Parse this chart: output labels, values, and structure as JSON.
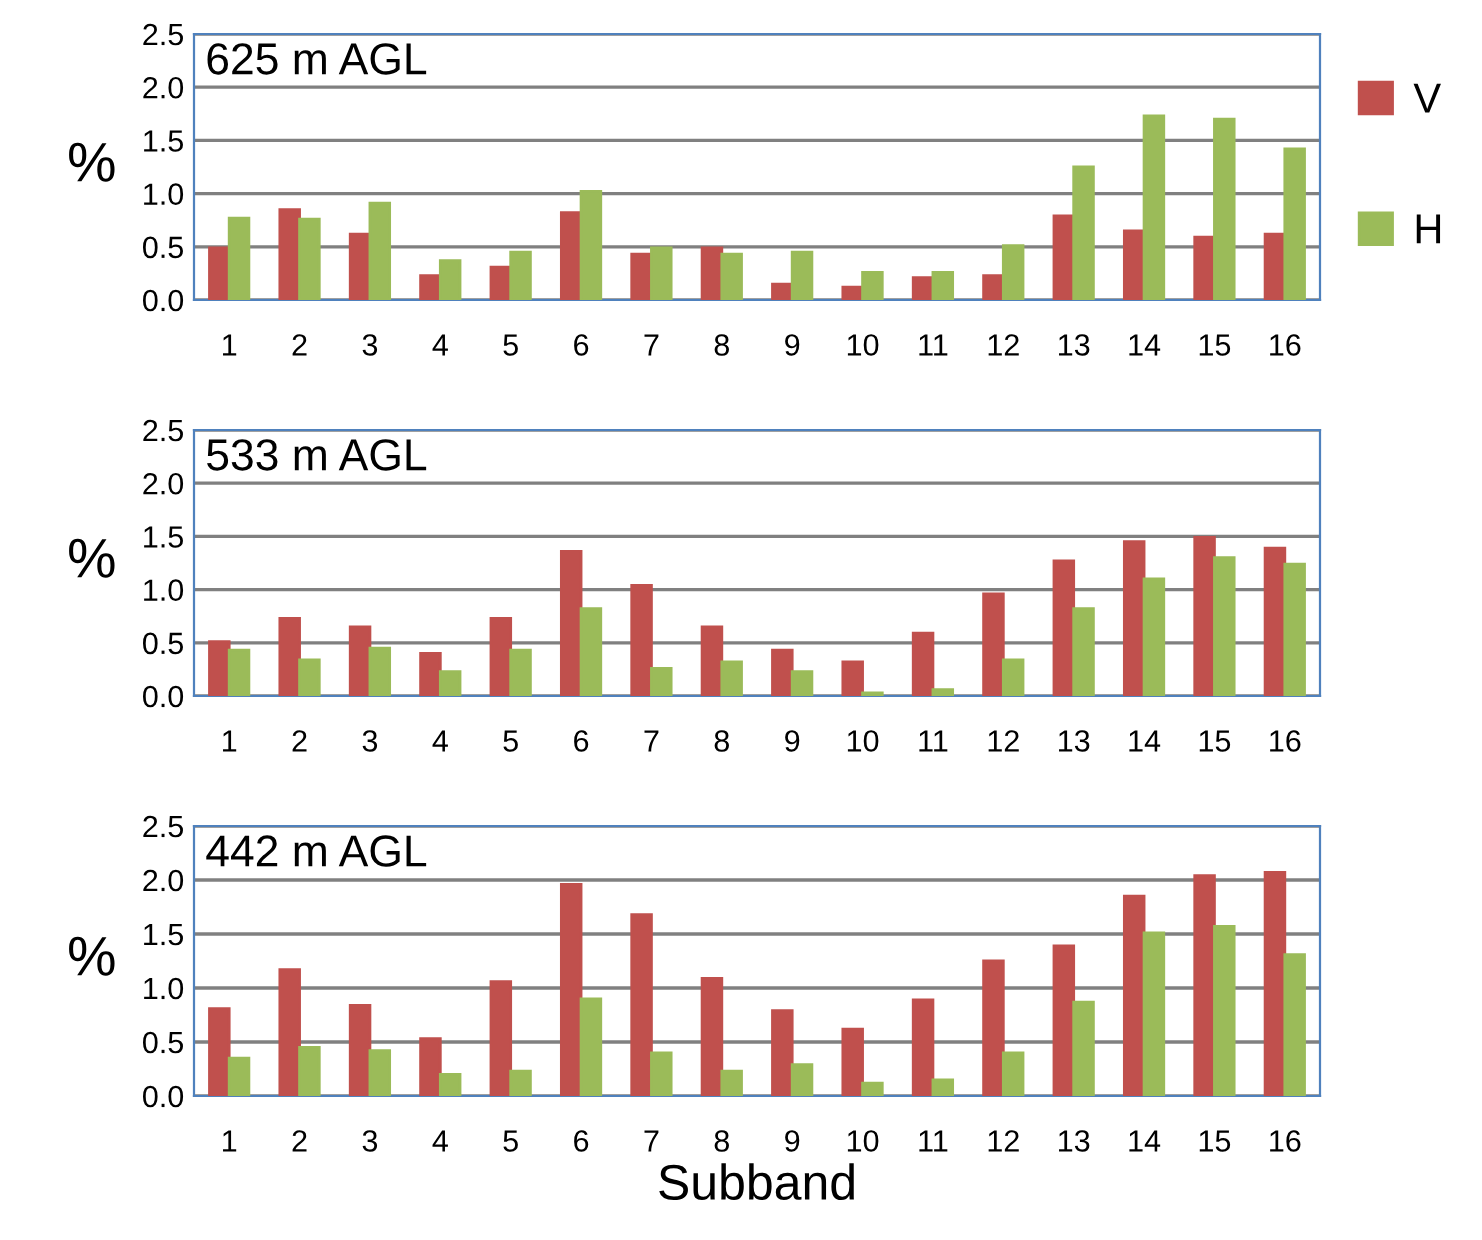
{
  "chart_data": [
    {
      "type": "bar",
      "title": "625 m AGL",
      "ylabel": "%",
      "categories": [
        "1",
        "2",
        "3",
        "4",
        "5",
        "6",
        "7",
        "8",
        "9",
        "10",
        "11",
        "12",
        "13",
        "14",
        "15",
        "16"
      ],
      "ylim": [
        0,
        2.5
      ],
      "yticks": [
        {
          "value": 0,
          "label": "0.0"
        },
        {
          "value": 0.5,
          "label": "0.5"
        },
        {
          "value": 1,
          "label": "1.0"
        },
        {
          "value": 1.5,
          "label": "1.5"
        },
        {
          "value": 2,
          "label": "2.0"
        },
        {
          "value": 2.5,
          "label": "2.5"
        }
      ],
      "grid": "y",
      "legend": "right",
      "series": [
        {
          "name": "V",
          "color": "#c0504d",
          "values": [
            0.49,
            0.85,
            0.62,
            0.23,
            0.31,
            0.82,
            0.43,
            0.49,
            0.15,
            0.12,
            0.21,
            0.23,
            0.79,
            0.65,
            0.59,
            0.62
          ]
        },
        {
          "name": "H",
          "color": "#9bbb59",
          "values": [
            0.77,
            0.76,
            0.91,
            0.37,
            0.45,
            1.02,
            0.49,
            0.43,
            0.45,
            0.26,
            0.26,
            0.51,
            1.25,
            1.73,
            1.7,
            1.42
          ]
        }
      ]
    },
    {
      "type": "bar",
      "title": "533 m AGL",
      "ylabel": "%",
      "categories": [
        "1",
        "2",
        "3",
        "4",
        "5",
        "6",
        "7",
        "8",
        "9",
        "10",
        "11",
        "12",
        "13",
        "14",
        "15",
        "16"
      ],
      "ylim": [
        0,
        2.5
      ],
      "yticks": [
        {
          "value": 0,
          "label": "0.0"
        },
        {
          "value": 0.5,
          "label": "0.5"
        },
        {
          "value": 1,
          "label": "1.0"
        },
        {
          "value": 1.5,
          "label": "1.5"
        },
        {
          "value": 2,
          "label": "2.0"
        },
        {
          "value": 2.5,
          "label": "2.5"
        }
      ],
      "grid": "y",
      "series": [
        {
          "color": "#c0504d",
          "values": [
            0.51,
            0.73,
            0.65,
            0.4,
            0.73,
            1.36,
            1.04,
            0.65,
            0.43,
            0.32,
            0.59,
            0.96,
            1.27,
            1.45,
            1.49,
            1.39
          ]
        },
        {
          "color": "#9bbb59",
          "values": [
            0.43,
            0.34,
            0.45,
            0.23,
            0.43,
            0.82,
            0.26,
            0.32,
            0.23,
            0.03,
            0.06,
            0.34,
            0.82,
            1.1,
            1.3,
            1.24
          ]
        }
      ]
    },
    {
      "type": "bar",
      "title": "442 m AGL",
      "ylabel": "%",
      "xlabel": "Subband",
      "categories": [
        "1",
        "2",
        "3",
        "4",
        "5",
        "6",
        "7",
        "8",
        "9",
        "10",
        "11",
        "12",
        "13",
        "14",
        "15",
        "16"
      ],
      "ylim": [
        0,
        2.5
      ],
      "yticks": [
        {
          "value": 0,
          "label": "0.0"
        },
        {
          "value": 0.5,
          "label": "0.5"
        },
        {
          "value": 1,
          "label": "1.0"
        },
        {
          "value": 1.5,
          "label": "1.5"
        },
        {
          "value": 2,
          "label": "2.0"
        },
        {
          "value": 2.5,
          "label": "2.5"
        }
      ],
      "grid": "y",
      "series": [
        {
          "color": "#c0504d",
          "values": [
            0.81,
            1.17,
            0.84,
            0.53,
            1.06,
            1.96,
            1.68,
            1.09,
            0.79,
            0.62,
            0.89,
            1.25,
            1.39,
            1.85,
            2.04,
            2.07
          ]
        },
        {
          "color": "#9bbb59",
          "values": [
            0.35,
            0.45,
            0.42,
            0.2,
            0.23,
            0.9,
            0.4,
            0.23,
            0.29,
            0.12,
            0.15,
            0.4,
            0.87,
            1.51,
            1.57,
            1.31
          ]
        }
      ]
    }
  ]
}
